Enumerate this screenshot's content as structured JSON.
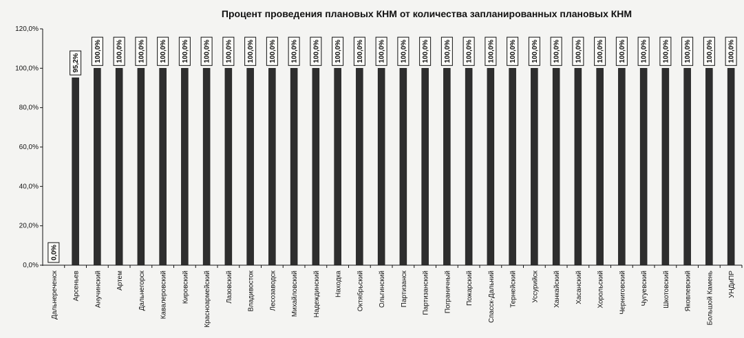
{
  "chart_data": {
    "type": "bar",
    "title": "Процент проведения плановых КНМ от количества запланированных плановых КНМ",
    "xlabel": "",
    "ylabel": "",
    "ylim": [
      0,
      120
    ],
    "yticks": [
      "0,0%",
      "20,0%",
      "40,0%",
      "60,0%",
      "80,0%",
      "100,0%",
      "120,0%"
    ],
    "grid": false,
    "legend": "none",
    "bar_color": "#2e2e2e",
    "categories": [
      "Дальнереченск",
      "Арсеньев",
      "Анучинский",
      "Артем",
      "Дальнегорск",
      "Кавалеровский",
      "Кировский",
      "Красноармейский",
      "Лазовский",
      "Владивосток",
      "Лесозаводск",
      "Михайловский",
      "Надеждинский",
      "Находка",
      "Октябрьский",
      "Ольгинский",
      "Партизанск",
      "Партизанский",
      "Пограничный",
      "Пожарский",
      "Спасск-Дальний",
      "Тернейский",
      "Уссурийск",
      "Ханкайский",
      "Хасанский",
      "Хорольский",
      "Черниговский",
      "Чугуевский",
      "Шкотовский",
      "Яковлевский",
      "Большой Камень",
      "УНДиПР"
    ],
    "values": [
      0,
      95.2,
      100,
      100,
      100,
      100,
      100,
      100,
      100,
      100,
      100,
      100,
      100,
      100,
      100,
      100,
      100,
      100,
      100,
      100,
      100,
      100,
      100,
      100,
      100,
      100,
      100,
      100,
      100,
      100,
      100,
      100
    ],
    "data_labels": [
      "0,0%",
      "95,2%",
      "100,0%",
      "100,0%",
      "100,0%",
      "100,0%",
      "100,0%",
      "100,0%",
      "100,0%",
      "100,0%",
      "100,0%",
      "100,0%",
      "100,0%",
      "100,0%",
      "100,0%",
      "100,0%",
      "100,0%",
      "100,0%",
      "100,0%",
      "100,0%",
      "100,0%",
      "100,0%",
      "100,0%",
      "100,0%",
      "100,0%",
      "100,0%",
      "100,0%",
      "100,0%",
      "100,0%",
      "100,0%",
      "100,0%",
      "100,0%"
    ]
  }
}
